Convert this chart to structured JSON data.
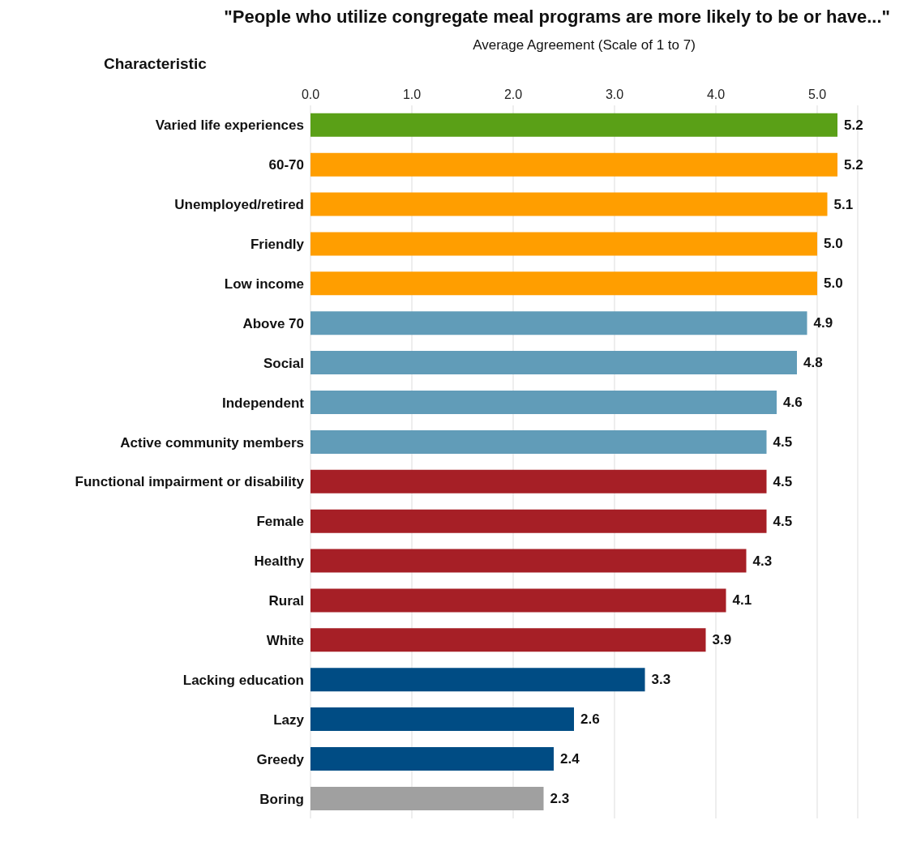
{
  "chart_data": {
    "type": "bar",
    "orientation": "horizontal",
    "title": "\"People who utilize congregate meal programs are more likely to be or have...\"",
    "xlabel": "Average Agreement (Scale of 1 to 7)",
    "ylabel": "Characteristic",
    "categories": [
      "Varied life experiences",
      "60-70",
      "Unemployed/retired",
      "Friendly",
      "Low income",
      "Above 70",
      "Social",
      "Independent",
      "Active community members",
      "Functional impairment or disability",
      "Female",
      "Healthy",
      "Rural",
      "White",
      "Lacking education",
      "Lazy",
      "Greedy",
      "Boring"
    ],
    "values": [
      5.2,
      5.2,
      5.1,
      5.0,
      5.0,
      4.9,
      4.8,
      4.6,
      4.5,
      4.5,
      4.5,
      4.3,
      4.1,
      3.9,
      3.3,
      2.6,
      2.4,
      2.3
    ],
    "value_labels": [
      "5.2",
      "5.2",
      "5.1",
      "5.0",
      "5.0",
      "4.9",
      "4.8",
      "4.6",
      "4.5",
      "4.5",
      "4.5",
      "4.3",
      "4.1",
      "3.9",
      "3.3",
      "2.6",
      "2.4",
      "2.3"
    ],
    "colors": [
      "#5aa017",
      "#ff9e00",
      "#ff9e00",
      "#ff9e00",
      "#ff9e00",
      "#619cb8",
      "#619cb8",
      "#619cb8",
      "#619cb8",
      "#a61f26",
      "#a61f26",
      "#a61f26",
      "#a61f26",
      "#a61f26",
      "#004c84",
      "#004c84",
      "#004c84",
      "#a0a0a0"
    ],
    "xlim": [
      0,
      5.4
    ],
    "xticks": [
      {
        "value": 0,
        "label": "0.0"
      },
      {
        "value": 1,
        "label": "1.0"
      },
      {
        "value": 2,
        "label": "2.0"
      },
      {
        "value": 3,
        "label": "3.0"
      },
      {
        "value": 4,
        "label": "4.0"
      },
      {
        "value": 5,
        "label": "5.0"
      }
    ],
    "grid": "x"
  }
}
